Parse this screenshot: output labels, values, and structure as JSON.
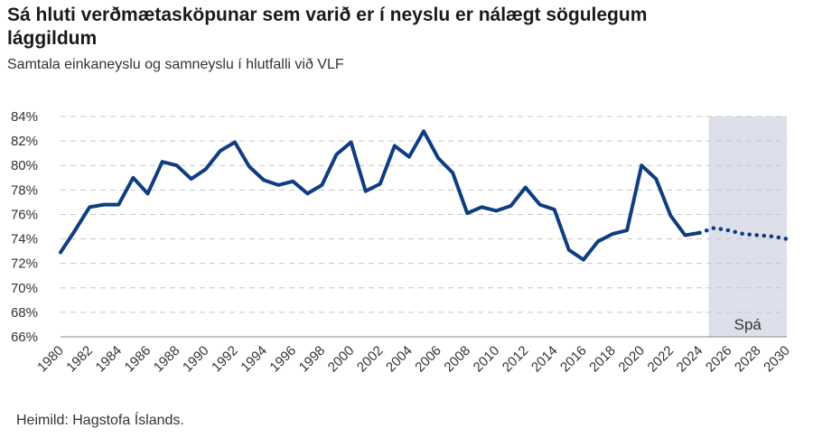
{
  "chart_data": {
    "type": "line",
    "title": "Sá hluti verðmætasköpunar sem varið er í neyslu er nálægt sögulegum lággildum",
    "subtitle": "Samtala einkaneyslu og samneyslu í hlutfalli við VLF",
    "xlabel": "",
    "ylabel": "",
    "source": "Heimild: Hagstofa Íslands.",
    "forecast_label": "Spá",
    "forecast_start": 2024,
    "xlim": [
      1980,
      2030
    ],
    "ylim": [
      66,
      84
    ],
    "y_ticks": [
      66,
      68,
      70,
      72,
      74,
      76,
      78,
      80,
      82,
      84
    ],
    "y_tick_labels": [
      "66%",
      "68%",
      "70%",
      "72%",
      "74%",
      "76%",
      "78%",
      "80%",
      "82%",
      "84%"
    ],
    "x_tick_labels": [
      "1980",
      "1982",
      "1984",
      "1986",
      "1988",
      "1990",
      "1992",
      "1994",
      "1996",
      "1998",
      "2000",
      "2002",
      "2004",
      "2006",
      "2008",
      "2010",
      "2012",
      "2014",
      "2016",
      "2018",
      "2020",
      "2022",
      "2024",
      "2026",
      "2028",
      "2030"
    ],
    "grid": "horizontal dashed",
    "color": "#0f3d82",
    "series": [
      {
        "x": [
          1980,
          1981,
          1982,
          1983,
          1984,
          1985,
          1986,
          1987,
          1988,
          1989,
          1990,
          1991,
          1992,
          1993,
          1994,
          1995,
          1996,
          1997,
          1998,
          1999,
          2000,
          2001,
          2002,
          2003,
          2004,
          2005,
          2006,
          2007,
          2008,
          2009,
          2010,
          2011,
          2012,
          2013,
          2014,
          2015,
          2016,
          2017,
          2018,
          2019,
          2020,
          2021,
          2022,
          2023,
          2024
        ],
        "values": [
          72.9,
          74.7,
          76.6,
          76.8,
          76.8,
          79.0,
          77.7,
          80.3,
          80.0,
          78.9,
          79.7,
          81.2,
          81.9,
          79.9,
          78.8,
          78.4,
          78.7,
          77.7,
          78.4,
          80.9,
          81.9,
          77.9,
          78.5,
          81.6,
          80.7,
          82.8,
          80.6,
          79.4,
          76.1,
          76.6,
          76.3,
          76.7,
          78.2,
          76.8,
          76.4,
          73.1,
          72.3,
          73.8,
          74.4,
          74.7,
          80.0,
          78.9,
          75.9,
          74.3,
          74.5
        ]
      },
      {
        "style": "dotted",
        "x": [
          2024,
          2025,
          2026,
          2027,
          2028,
          2029,
          2030
        ],
        "values": [
          74.5,
          74.9,
          74.7,
          74.4,
          74.3,
          74.2,
          74.0
        ]
      }
    ]
  }
}
